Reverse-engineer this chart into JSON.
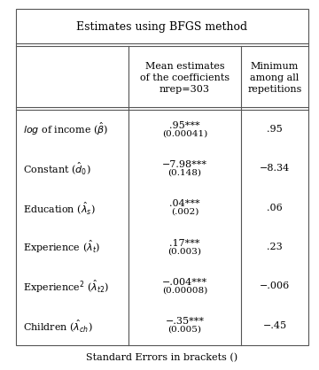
{
  "title": "Estimates using BFGS method",
  "footer": "Standard Errors in brackets ()",
  "col_headers_1": "Mean estimates\nof the coefficients\nnrep=303",
  "col_headers_2": "Minimum\namong all\nrepetitions",
  "row_labels": [
    "$\\it{log}$ of income ($\\hat{\\beta}$)",
    "Constant ($\\hat{d}_0$)",
    "Education ($\\hat{\\lambda}_s$)",
    "Experience ($\\hat{\\lambda}_t$)",
    "Experience$^2$ ($\\hat{\\lambda}_{t2}$)",
    "Children ($\\hat{\\lambda}_{ch}$)"
  ],
  "row_means_line1": [
    ".95***",
    "−7.98***",
    ".04***",
    ".17***",
    "−.004***",
    "−.35***"
  ],
  "row_means_line2": [
    "(0.00041)",
    "(0.148)",
    "(.002)",
    "(0.003)",
    "(0.00008)",
    "(0.005)"
  ],
  "row_mins": [
    ".95",
    "−8.34",
    ".06",
    ".23",
    "−.006",
    "−.45"
  ],
  "bg_color": "#ffffff",
  "line_color": "#555555",
  "font_size": 8.5
}
